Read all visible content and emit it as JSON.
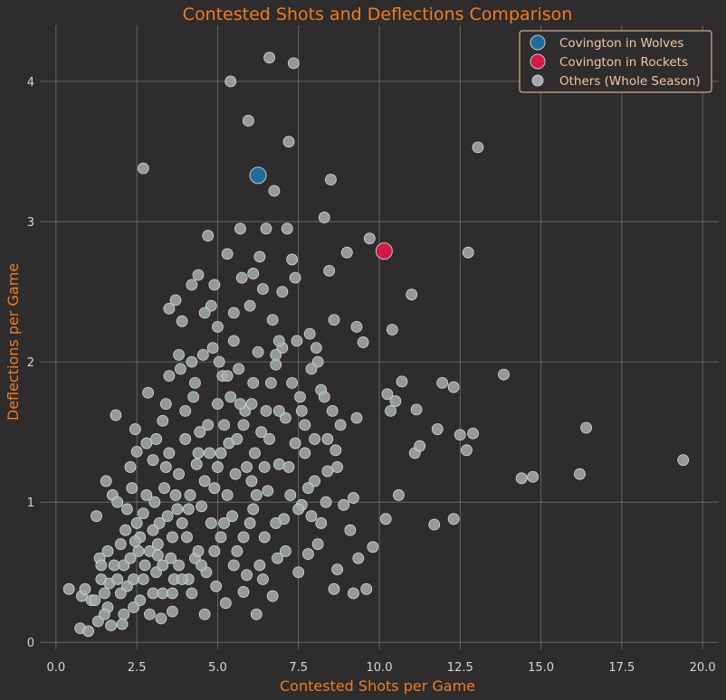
{
  "chart_data": {
    "type": "scatter",
    "title": "Contested Shots and Deflections Comparison",
    "xlabel": "Contested Shots per Game",
    "ylabel": "Deflections per Game",
    "xlim": [
      -0.5,
      20.5
    ],
    "ylim": [
      -0.05,
      4.4
    ],
    "xticks": [
      "0.0",
      "2.5",
      "5.0",
      "7.5",
      "10.0",
      "12.5",
      "15.0",
      "17.5",
      "20.0"
    ],
    "xtick_values": [
      0,
      2.5,
      5,
      7.5,
      10,
      12.5,
      15,
      17.5,
      20
    ],
    "yticks": [
      "0",
      "1",
      "2",
      "3",
      "4"
    ],
    "ytick_values": [
      0,
      1,
      2,
      3,
      4
    ],
    "grid": true,
    "legend_position": "top-right",
    "colors": {
      "background": "#2e2c2d",
      "accent": "#f07d22",
      "wolves": "#1f6b9a",
      "rockets": "#d41848",
      "others": "#a3a8a8"
    },
    "series": [
      {
        "name": "Covington in Wolves",
        "color": "#1f6b9a",
        "points": [
          [
            6.25,
            3.33
          ]
        ]
      },
      {
        "name": "Covington in Rockets",
        "color": "#d41848",
        "points": [
          [
            10.15,
            2.79
          ]
        ]
      },
      {
        "name": "Others (Whole Season)",
        "color": "#a3a8a8",
        "points": [
          [
            0.4,
            0.38
          ],
          [
            0.75,
            0.1
          ],
          [
            0.8,
            0.33
          ],
          [
            0.9,
            0.38
          ],
          [
            1.0,
            0.08
          ],
          [
            1.1,
            0.3
          ],
          [
            1.25,
            0.9
          ],
          [
            1.3,
            0.15
          ],
          [
            1.35,
            0.6
          ],
          [
            1.4,
            0.45
          ],
          [
            1.5,
            0.35
          ],
          [
            1.55,
            1.15
          ],
          [
            1.6,
            0.25
          ],
          [
            1.65,
            0.42
          ],
          [
            1.7,
            0.12
          ],
          [
            1.75,
            1.05
          ],
          [
            1.8,
            0.55
          ],
          [
            1.85,
            1.62
          ],
          [
            1.9,
            1.0
          ],
          [
            2.0,
            0.7
          ],
          [
            2.05,
            0.13
          ],
          [
            2.1,
            0.55
          ],
          [
            2.15,
            0.8
          ],
          [
            2.2,
            0.4
          ],
          [
            2.3,
            0.6
          ],
          [
            2.35,
            1.1
          ],
          [
            2.4,
            0.45
          ],
          [
            2.45,
            1.52
          ],
          [
            2.5,
            0.85
          ],
          [
            2.5,
            1.36
          ],
          [
            2.55,
            0.65
          ],
          [
            2.6,
            0.3
          ],
          [
            2.7,
            0.92
          ],
          [
            2.7,
            3.38
          ],
          [
            2.75,
            0.55
          ],
          [
            2.8,
            1.42
          ],
          [
            2.85,
            1.78
          ],
          [
            2.9,
            0.2
          ],
          [
            3.0,
            0.8
          ],
          [
            3.0,
            1.3
          ],
          [
            3.05,
            1.0
          ],
          [
            3.1,
            0.5
          ],
          [
            3.15,
            0.7
          ],
          [
            3.25,
            0.17
          ],
          [
            3.3,
            1.58
          ],
          [
            3.3,
            0.35
          ],
          [
            3.35,
            1.1
          ],
          [
            3.4,
            1.7
          ],
          [
            3.45,
            0.9
          ],
          [
            3.5,
            2.38
          ],
          [
            3.5,
            1.35
          ],
          [
            3.55,
            0.6
          ],
          [
            3.6,
            0.22
          ],
          [
            3.65,
            0.45
          ],
          [
            3.7,
            2.44
          ],
          [
            3.75,
            0.95
          ],
          [
            3.8,
            1.2
          ],
          [
            3.85,
            1.95
          ],
          [
            3.9,
            0.85
          ],
          [
            3.9,
            2.29
          ],
          [
            4.0,
            1.45
          ],
          [
            4.05,
            0.75
          ],
          [
            4.1,
            0.45
          ],
          [
            4.15,
            1.05
          ],
          [
            4.2,
            2.0
          ],
          [
            4.25,
            1.75
          ],
          [
            4.3,
            0.6
          ],
          [
            4.35,
            1.27
          ],
          [
            4.4,
            2.62
          ],
          [
            4.45,
            1.5
          ],
          [
            4.5,
            0.97
          ],
          [
            4.55,
            2.05
          ],
          [
            4.6,
            0.2
          ],
          [
            4.65,
            0.5
          ],
          [
            4.7,
            2.9
          ],
          [
            4.75,
            1.35
          ],
          [
            4.8,
            0.85
          ],
          [
            4.8,
            2.4
          ],
          [
            4.85,
            2.1
          ],
          [
            4.9,
            1.1
          ],
          [
            4.95,
            0.4
          ],
          [
            5.0,
            1.7
          ],
          [
            5.05,
            2.0
          ],
          [
            5.1,
            0.75
          ],
          [
            5.15,
            1.9
          ],
          [
            5.2,
            1.55
          ],
          [
            5.25,
            0.28
          ],
          [
            5.3,
            2.77
          ],
          [
            5.35,
            1.42
          ],
          [
            5.4,
            4.0
          ],
          [
            5.45,
            0.9
          ],
          [
            5.5,
            2.35
          ],
          [
            5.55,
            1.2
          ],
          [
            5.6,
            0.65
          ],
          [
            5.65,
            1.95
          ],
          [
            5.7,
            2.95
          ],
          [
            5.75,
            2.6
          ],
          [
            5.8,
            0.36
          ],
          [
            5.85,
            1.65
          ],
          [
            5.9,
            0.48
          ],
          [
            5.95,
            3.72
          ],
          [
            6.0,
            0.85
          ],
          [
            6.05,
            1.15
          ],
          [
            6.1,
            2.63
          ],
          [
            6.15,
            1.35
          ],
          [
            6.2,
            0.2
          ],
          [
            6.25,
            2.07
          ],
          [
            6.3,
            0.55
          ],
          [
            6.35,
            1.5
          ],
          [
            6.4,
            2.52
          ],
          [
            6.45,
            0.75
          ],
          [
            6.5,
            2.95
          ],
          [
            6.55,
            1.08
          ],
          [
            6.6,
            4.17
          ],
          [
            6.65,
            1.85
          ],
          [
            6.7,
            0.33
          ],
          [
            6.75,
            3.22
          ],
          [
            6.8,
            1.98
          ],
          [
            6.85,
            0.6
          ],
          [
            6.9,
            1.27
          ],
          [
            7.0,
            2.1
          ],
          [
            7.05,
            0.88
          ],
          [
            7.1,
            1.6
          ],
          [
            7.15,
            2.95
          ],
          [
            7.2,
            3.57
          ],
          [
            7.25,
            1.05
          ],
          [
            7.3,
            2.73
          ],
          [
            7.35,
            4.13
          ],
          [
            7.4,
            1.42
          ],
          [
            7.45,
            2.15
          ],
          [
            7.5,
            0.5
          ],
          [
            7.55,
            1.75
          ],
          [
            7.6,
            0.98
          ],
          [
            7.7,
            1.55
          ],
          [
            7.8,
            0.63
          ],
          [
            7.85,
            2.2
          ],
          [
            7.9,
            0.9
          ],
          [
            8.0,
            1.45
          ],
          [
            8.05,
            2.1
          ],
          [
            8.1,
            0.7
          ],
          [
            8.2,
            1.8
          ],
          [
            8.3,
            3.03
          ],
          [
            8.35,
            1.0
          ],
          [
            8.4,
            1.22
          ],
          [
            8.45,
            2.65
          ],
          [
            8.5,
            3.3
          ],
          [
            8.55,
            1.65
          ],
          [
            8.6,
            0.38
          ],
          [
            8.65,
            1.37
          ],
          [
            8.7,
            0.52
          ],
          [
            8.8,
            1.55
          ],
          [
            9.0,
            2.78
          ],
          [
            9.1,
            0.8
          ],
          [
            9.2,
            1.03
          ],
          [
            9.3,
            1.6
          ],
          [
            9.35,
            0.6
          ],
          [
            9.5,
            2.14
          ],
          [
            9.6,
            0.38
          ],
          [
            9.7,
            2.88
          ],
          [
            9.8,
            0.68
          ],
          [
            10.2,
            0.88
          ],
          [
            10.25,
            1.77
          ],
          [
            10.35,
            1.65
          ],
          [
            10.4,
            2.23
          ],
          [
            10.5,
            1.72
          ],
          [
            10.6,
            1.05
          ],
          [
            10.7,
            1.86
          ],
          [
            11.0,
            2.48
          ],
          [
            11.1,
            1.35
          ],
          [
            11.15,
            1.66
          ],
          [
            11.25,
            1.4
          ],
          [
            11.7,
            0.84
          ],
          [
            11.8,
            1.52
          ],
          [
            11.95,
            1.85
          ],
          [
            12.3,
            0.88
          ],
          [
            12.3,
            1.82
          ],
          [
            12.5,
            1.48
          ],
          [
            12.7,
            1.37
          ],
          [
            12.75,
            2.78
          ],
          [
            12.9,
            1.49
          ],
          [
            13.05,
            3.53
          ],
          [
            13.85,
            1.91
          ],
          [
            14.4,
            1.17
          ],
          [
            14.75,
            1.18
          ],
          [
            16.2,
            1.2
          ],
          [
            16.4,
            1.53
          ],
          [
            19.4,
            1.3
          ],
          [
            1.4,
            0.55
          ],
          [
            1.9,
            0.45
          ],
          [
            2.2,
            0.95
          ],
          [
            2.6,
            0.75
          ],
          [
            2.9,
            0.65
          ],
          [
            3.2,
            0.85
          ],
          [
            3.6,
            0.75
          ],
          [
            3.8,
            0.55
          ],
          [
            4.1,
            0.95
          ],
          [
            4.4,
            0.65
          ],
          [
            4.6,
            1.15
          ],
          [
            5.0,
            1.25
          ],
          [
            5.3,
            1.05
          ],
          [
            5.6,
            1.45
          ],
          [
            5.9,
            1.25
          ],
          [
            6.2,
            1.05
          ],
          [
            6.6,
            1.45
          ],
          [
            6.9,
            1.65
          ],
          [
            7.3,
            1.85
          ],
          [
            7.7,
            1.35
          ],
          [
            2.3,
            1.25
          ],
          [
            2.8,
            1.05
          ],
          [
            3.1,
            1.45
          ],
          [
            3.4,
            1.25
          ],
          [
            3.7,
            1.05
          ],
          [
            4.0,
            1.65
          ],
          [
            4.3,
            1.85
          ],
          [
            4.7,
            1.55
          ],
          [
            5.1,
            1.35
          ],
          [
            5.4,
            1.75
          ],
          [
            5.8,
            1.55
          ],
          [
            6.1,
            1.85
          ],
          [
            6.5,
            1.65
          ],
          [
            6.8,
            2.05
          ],
          [
            7.2,
            1.25
          ],
          [
            7.6,
            1.65
          ],
          [
            8.0,
            1.15
          ],
          [
            8.4,
            1.45
          ],
          [
            1.6,
            0.65
          ],
          [
            2.0,
            0.35
          ],
          [
            2.4,
            0.25
          ],
          [
            2.7,
            0.45
          ],
          [
            3.0,
            0.35
          ],
          [
            3.3,
            0.55
          ],
          [
            3.6,
            0.35
          ],
          [
            3.9,
            0.45
          ],
          [
            4.2,
            0.35
          ],
          [
            4.5,
            0.55
          ],
          [
            4.9,
            0.65
          ],
          [
            5.2,
            0.85
          ],
          [
            5.5,
            0.55
          ],
          [
            5.8,
            0.75
          ],
          [
            6.1,
            0.95
          ],
          [
            6.4,
            0.45
          ],
          [
            6.8,
            0.85
          ],
          [
            7.1,
            0.65
          ],
          [
            7.5,
            0.95
          ],
          [
            5.0,
            2.25
          ],
          [
            5.5,
            2.15
          ],
          [
            6.0,
            2.4
          ],
          [
            6.3,
            2.75
          ],
          [
            4.6,
            2.35
          ],
          [
            4.2,
            2.55
          ],
          [
            3.8,
            2.05
          ],
          [
            4.9,
            2.55
          ],
          [
            6.7,
            2.3
          ],
          [
            7.0,
            2.5
          ],
          [
            7.4,
            2.6
          ],
          [
            8.1,
            2.0
          ],
          [
            8.6,
            2.3
          ],
          [
            9.3,
            2.25
          ],
          [
            6.9,
            2.15
          ],
          [
            5.3,
            1.9
          ],
          [
            5.7,
            1.7
          ],
          [
            3.5,
            1.9
          ],
          [
            4.4,
            1.35
          ],
          [
            2.1,
            0.2
          ],
          [
            1.2,
            0.3
          ],
          [
            1.5,
            0.2
          ],
          [
            8.2,
            0.85
          ],
          [
            8.9,
            0.98
          ],
          [
            9.2,
            0.35
          ],
          [
            7.9,
            1.95
          ],
          [
            8.7,
            1.25
          ],
          [
            8.3,
            1.75
          ],
          [
            6.05,
            1.7
          ],
          [
            6.45,
            1.25
          ],
          [
            7.8,
            1.1
          ],
          [
            3.15,
            0.62
          ],
          [
            2.45,
            0.72
          ]
        ]
      }
    ]
  }
}
